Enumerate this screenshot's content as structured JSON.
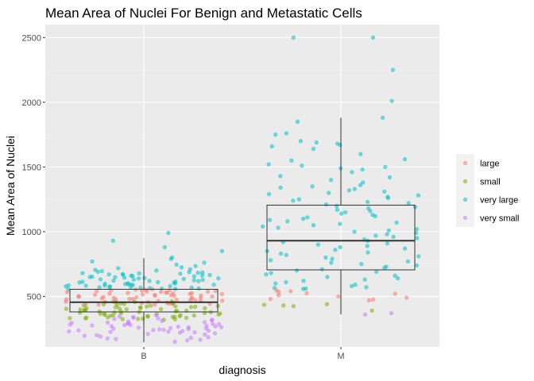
{
  "chart_data": {
    "type": "scatter",
    "title": "Mean Area of Nuclei For Benign and Metastatic Cells",
    "xlabel": "diagnosis",
    "ylabel": "Mean Area of Nuclei",
    "categories": [
      "B",
      "M"
    ],
    "ylim": [
      110,
      2600
    ],
    "yticks": [
      500,
      1000,
      1500,
      2000,
      2500
    ],
    "grid": true,
    "legend_position": "right",
    "series": [
      {
        "name": "large",
        "color": "#F8766D"
      },
      {
        "name": "small",
        "color": "#7CAE00"
      },
      {
        "name": "very large",
        "color": "#00BFC4"
      },
      {
        "name": "very small",
        "color": "#C77CFF"
      }
    ],
    "boxes": [
      {
        "category": "B",
        "whisker_low": 145,
        "q1": 380,
        "median": 455,
        "q3": 555,
        "whisker_high": 795
      },
      {
        "category": "M",
        "whisker_low": 360,
        "q1": 705,
        "median": 930,
        "q3": 1205,
        "whisker_high": 1880
      }
    ],
    "points": [
      {
        "category": "B",
        "series": "very large",
        "values": [
          990,
          930,
          880,
          850,
          800,
          790,
          770,
          760,
          745,
          735,
          725,
          718,
          710,
          705,
          700,
          695,
          690,
          688,
          685,
          682,
          680,
          678,
          675,
          672,
          670,
          668,
          665,
          662,
          660,
          658,
          655,
          652,
          650,
          648,
          645,
          642,
          640,
          638,
          635,
          632,
          630,
          628,
          625,
          622,
          620,
          618,
          615,
          612,
          610,
          608,
          605,
          602,
          600,
          598,
          596,
          594,
          592,
          590,
          588,
          586,
          584,
          582,
          580,
          578,
          576,
          574,
          572,
          570,
          568,
          566,
          564,
          562,
          560,
          558,
          556
        ]
      },
      {
        "category": "B",
        "series": "large",
        "values": [
          555,
          553,
          551,
          549,
          547,
          545,
          543,
          541,
          539,
          537,
          535,
          533,
          531,
          529,
          527,
          525,
          523,
          521,
          519,
          517,
          515,
          513,
          511,
          509,
          507,
          505,
          503,
          501,
          499,
          497,
          495,
          493,
          491,
          489,
          487,
          485,
          483,
          481,
          479,
          477,
          475,
          473,
          471,
          469,
          467,
          465,
          463,
          461,
          459,
          457,
          455,
          453,
          451,
          449,
          447,
          445,
          443,
          441,
          439,
          437,
          435
        ]
      },
      {
        "category": "B",
        "series": "small",
        "values": [
          462,
          458,
          454,
          450,
          446,
          442,
          438,
          434,
          430,
          428,
          426,
          424,
          422,
          420,
          418,
          416,
          414,
          412,
          410,
          408,
          406,
          404,
          402,
          400,
          398,
          396,
          394,
          392,
          390,
          388,
          386,
          384,
          382,
          380,
          378,
          376,
          374,
          372,
          370,
          368,
          366,
          364,
          362,
          360,
          358,
          356,
          354,
          352,
          350,
          348,
          346,
          344,
          342,
          340,
          338,
          336,
          334,
          332,
          330,
          328,
          326,
          324,
          322,
          320
        ]
      },
      {
        "category": "B",
        "series": "very small",
        "values": [
          355,
          345,
          340,
          335,
          330,
          325,
          320,
          315,
          310,
          305,
          300,
          298,
          295,
          292,
          290,
          288,
          285,
          282,
          280,
          278,
          275,
          272,
          270,
          268,
          265,
          262,
          260,
          258,
          255,
          252,
          250,
          248,
          245,
          242,
          240,
          238,
          235,
          232,
          230,
          228,
          225,
          222,
          220,
          215,
          210,
          205,
          200,
          195,
          190,
          185,
          180,
          175,
          170,
          165,
          160,
          150
        ]
      },
      {
        "category": "M",
        "series": "very large",
        "values": [
          2500,
          2500,
          2250,
          2010,
          1880,
          1850,
          1760,
          1750,
          1700,
          1690,
          1680,
          1670,
          1660,
          1640,
          1600,
          1560,
          1550,
          1520,
          1510,
          1500,
          1490,
          1480,
          1460,
          1430,
          1420,
          1400,
          1380,
          1360,
          1350,
          1340,
          1330,
          1320,
          1310,
          1300,
          1290,
          1280,
          1270,
          1260,
          1250,
          1240,
          1230,
          1220,
          1210,
          1200,
          1190,
          1180,
          1170,
          1160,
          1150,
          1140,
          1130,
          1120,
          1110,
          1100,
          1090,
          1080,
          1070,
          1060,
          1050,
          1040,
          1030,
          1020,
          1010,
          1000,
          990,
          980,
          970,
          960,
          950,
          940,
          930,
          920,
          910,
          900,
          890,
          880,
          870,
          860,
          850,
          840,
          830,
          820,
          810,
          800,
          790,
          780,
          770,
          760,
          750,
          740,
          730,
          720,
          710,
          700,
          690,
          680,
          670,
          660,
          650,
          640,
          630,
          620,
          610,
          600,
          590,
          580,
          570,
          565,
          560,
          558
        ]
      },
      {
        "category": "M",
        "series": "large",
        "values": [
          545,
          540,
          535,
          525,
          520,
          510,
          500,
          490,
          480,
          475,
          470
        ]
      },
      {
        "category": "M",
        "series": "small",
        "values": [
          440,
          435,
          430,
          425,
          390
        ]
      },
      {
        "category": "M",
        "series": "very small",
        "values": [
          370,
          360
        ]
      }
    ]
  }
}
